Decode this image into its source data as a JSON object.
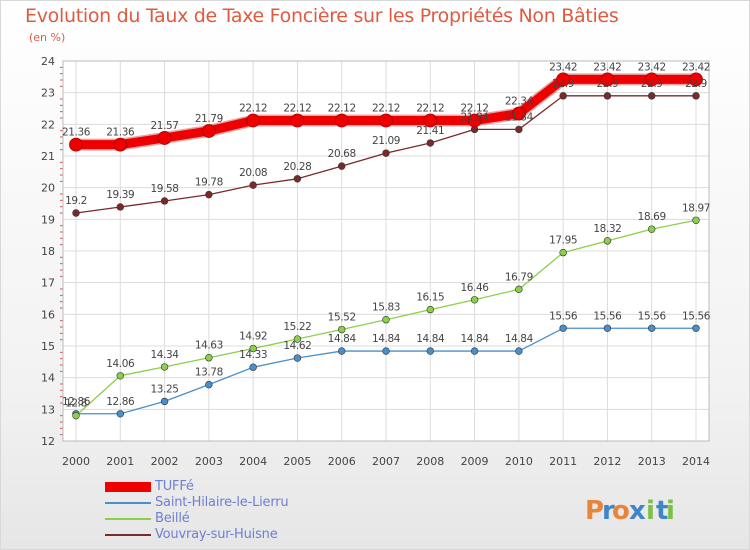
{
  "title": "Evolution du Taux de Taxe Foncière sur les Propriétés Non Bâties",
  "unit": "(en %)",
  "brand": {
    "letters": [
      "P",
      "r",
      "o",
      "x",
      "i",
      "t",
      "i"
    ],
    "colors": [
      "#e8853a",
      "#3f86c8",
      "#e8853a",
      "#3f86c8",
      "#7cc048",
      "#3f86c8",
      "#7cc048"
    ]
  },
  "chart_data": {
    "type": "line",
    "x": [
      "2000",
      "2001",
      "2002",
      "2003",
      "2004",
      "2005",
      "2006",
      "2007",
      "2008",
      "2009",
      "2010",
      "2011",
      "2012",
      "2013",
      "2014"
    ],
    "ylim": [
      12,
      24
    ],
    "yticks": [
      "12",
      "13",
      "14",
      "15",
      "16",
      "17",
      "18",
      "19",
      "20",
      "21",
      "22",
      "23",
      "24"
    ],
    "grid": true,
    "legend_position": "bottom-left",
    "series": [
      {
        "name": "TUFFé",
        "color": "#ee0000",
        "values": [
          21.36,
          21.36,
          21.57,
          21.79,
          22.12,
          22.12,
          22.12,
          22.12,
          22.12,
          22.12,
          22.34,
          23.42,
          23.42,
          23.42,
          23.42
        ],
        "labels": [
          "21.36",
          "21.36",
          "21.57",
          "21.79",
          "22.12",
          "22.12",
          "22.12",
          "22.12",
          "22.12",
          "22.12",
          "22.34",
          "23.42",
          "23.42",
          "23.42",
          "23.42"
        ]
      },
      {
        "name": "Saint-Hilaire-le-Lierru",
        "color": "#4a8fc9",
        "values": [
          12.86,
          12.86,
          13.25,
          13.78,
          14.33,
          14.62,
          14.84,
          14.84,
          14.84,
          14.84,
          14.84,
          15.56,
          15.56,
          15.56,
          15.56
        ],
        "labels": [
          "12.86",
          "12.86",
          "13.25",
          "13.78",
          "14.33",
          "14.62",
          "14.84",
          "14.84",
          "14.84",
          "14.84",
          "14.84",
          "15.56",
          "15.56",
          "15.56",
          "15.56"
        ]
      },
      {
        "name": "Beillé",
        "color": "#8ccf4a",
        "values": [
          12.8,
          14.06,
          14.34,
          14.63,
          14.92,
          15.22,
          15.52,
          15.83,
          16.15,
          16.46,
          16.79,
          17.95,
          18.32,
          18.69,
          18.97
        ],
        "labels": [
          "12.8",
          "14.06",
          "14.34",
          "14.63",
          "14.92",
          "15.22",
          "15.52",
          "15.83",
          "16.15",
          "16.46",
          "16.79",
          "17.95",
          "18.32",
          "18.69",
          "18.97"
        ]
      },
      {
        "name": "Vouvray-sur-Huisne",
        "color": "#7a2a2a",
        "values": [
          19.2,
          19.39,
          19.58,
          19.78,
          20.08,
          20.28,
          20.68,
          21.09,
          21.41,
          21.84,
          21.84,
          22.9,
          22.9,
          22.9,
          22.9
        ],
        "labels": [
          "19.2",
          "19.39",
          "19.58",
          "19.78",
          "20.08",
          "20.28",
          "20.68",
          "21.09",
          "21.41",
          "21.84",
          "21.84",
          "22.9",
          "22.9",
          "22.9",
          "22.9"
        ]
      }
    ]
  }
}
